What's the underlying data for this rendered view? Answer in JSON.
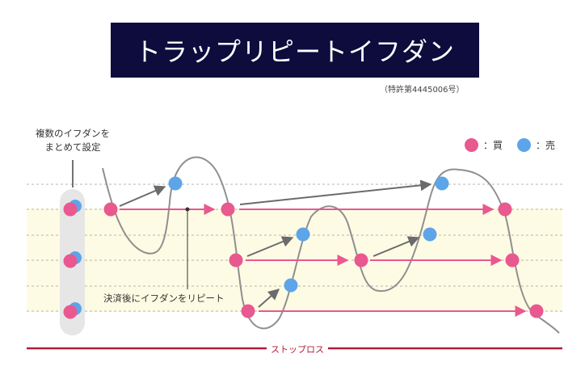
{
  "title": "トラップリピートイフダン",
  "patent": "（特許第4445006号）",
  "note_lines": [
    "複数のイフダンを",
    "まとめて設定"
  ],
  "legend": [
    {
      "label": "：買",
      "color": "#e9588f"
    },
    {
      "label": "：売",
      "color": "#5da5e8"
    }
  ],
  "annotation": "決済後にイフダンをリピート",
  "stop_loss_label": "ストップロス",
  "colors": {
    "buy": "#e9588f",
    "sell": "#5da5e8",
    "title_bg": "#0d0c3d",
    "stop_line": "#b01d3a",
    "band": "#fdfbe3",
    "curve": "#8f8f8f"
  }
}
